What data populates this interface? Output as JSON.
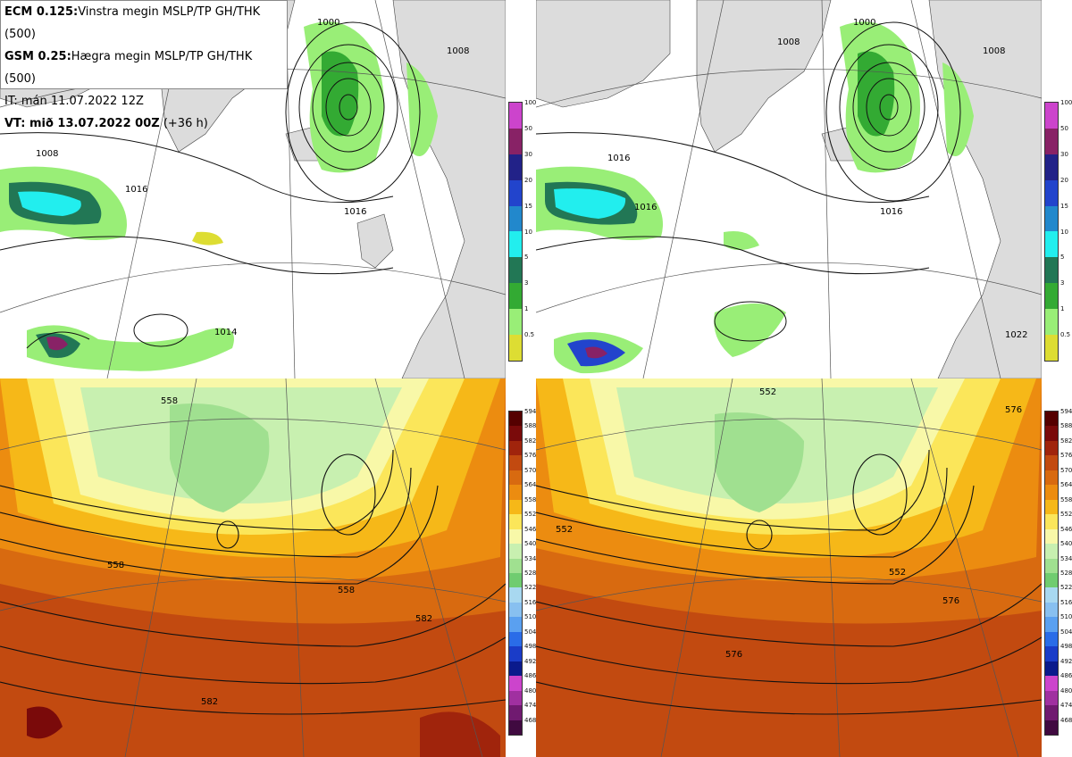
{
  "info": {
    "line1_bold": "ECM 0.125:",
    "line1_text": "Vinstra megin MSLP/TP GH/THK (500)",
    "line2_bold": "GSM 0.25:",
    "line2_text": "Hægra megin MSLP/TP GH/THK (500)",
    "line3_text": "IT: mán 11.07.2022 12Z",
    "line4_bold": "VT: mið 13.07.2022 00Z",
    "line4_text": "(+36 h)"
  },
  "precip_scale": {
    "labels": [
      "100",
      "50",
      "30",
      "20",
      "15",
      "10",
      "5",
      "3",
      "1",
      "0.5"
    ],
    "colors": [
      "#cc44cc",
      "#882266",
      "#222288",
      "#2244cc",
      "#2288cc",
      "#22eeee",
      "#227755",
      "#33aa33",
      "#99ee77",
      "#dddd33"
    ]
  },
  "thk_scale": {
    "labels": [
      "594",
      "588",
      "582",
      "576",
      "570",
      "564",
      "558",
      "552",
      "546",
      "540",
      "534",
      "528",
      "522",
      "516",
      "510",
      "504",
      "498",
      "492",
      "486",
      "480",
      "474",
      "468"
    ],
    "colors": [
      "#550000",
      "#7a0a0a",
      "#a0240c",
      "#c24a10",
      "#d86a10",
      "#ec8c10",
      "#f6b818",
      "#fbe65a",
      "#f8f8a8",
      "#c8f0b0",
      "#a0e090",
      "#70cc70",
      "#a8d8f0",
      "#88c0f0",
      "#5aa0f0",
      "#2a6ce8",
      "#1a3cc8",
      "#0a1a8c",
      "#cc44cc",
      "#a030a0",
      "#701a70",
      "#400a40"
    ]
  },
  "map_labels": {
    "top_left": [
      "1000",
      "1008",
      "1016",
      "1016",
      "1008",
      "1014"
    ],
    "top_right": [
      "1000",
      "1008",
      "1016",
      "1016",
      "1016",
      "1022",
      "1008"
    ],
    "bottom_left": [
      "558",
      "558",
      "558",
      "582",
      "582"
    ],
    "bottom_right": [
      "552",
      "552",
      "552",
      "576",
      "576",
      "576"
    ]
  }
}
